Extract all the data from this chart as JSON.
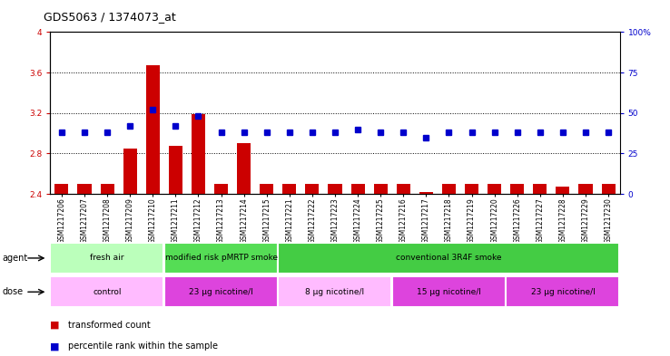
{
  "title": "GDS5063 / 1374073_at",
  "samples": [
    "GSM1217206",
    "GSM1217207",
    "GSM1217208",
    "GSM1217209",
    "GSM1217210",
    "GSM1217211",
    "GSM1217212",
    "GSM1217213",
    "GSM1217214",
    "GSM1217215",
    "GSM1217221",
    "GSM1217222",
    "GSM1217223",
    "GSM1217224",
    "GSM1217225",
    "GSM1217216",
    "GSM1217217",
    "GSM1217218",
    "GSM1217219",
    "GSM1217220",
    "GSM1217226",
    "GSM1217227",
    "GSM1217228",
    "GSM1217229",
    "GSM1217230"
  ],
  "transformed_count": [
    2.5,
    2.5,
    2.5,
    2.85,
    3.67,
    2.88,
    3.19,
    2.5,
    2.9,
    2.5,
    2.5,
    2.5,
    2.5,
    2.5,
    2.5,
    2.5,
    2.42,
    2.5,
    2.5,
    2.5,
    2.5,
    2.5,
    2.47,
    2.5,
    2.5
  ],
  "percentile_rank_pct": [
    38,
    38,
    38,
    42,
    52,
    42,
    48,
    38,
    38,
    38,
    38,
    38,
    38,
    40,
    38,
    38,
    35,
    38,
    38,
    38,
    38,
    38,
    38,
    38,
    38
  ],
  "ylim_left": [
    2.4,
    4.0
  ],
  "ylim_right": [
    0,
    100
  ],
  "yticks_left": [
    2.4,
    2.8,
    3.2,
    3.6,
    4.0
  ],
  "yticks_right": [
    0,
    25,
    50,
    75,
    100
  ],
  "ytick_labels_left": [
    "2.4",
    "2.8",
    "3.2",
    "3.6",
    "4"
  ],
  "ytick_labels_right": [
    "0",
    "25",
    "50",
    "75",
    "100%"
  ],
  "bar_color": "#cc0000",
  "dot_color": "#0000cc",
  "agent_groups": [
    {
      "label": "fresh air",
      "start": 0,
      "end": 4,
      "color": "#bbffbb"
    },
    {
      "label": "modified risk pMRTP smoke",
      "start": 5,
      "end": 9,
      "color": "#55dd55"
    },
    {
      "label": "conventional 3R4F smoke",
      "start": 10,
      "end": 24,
      "color": "#44cc44"
    }
  ],
  "dose_groups": [
    {
      "label": "control",
      "start": 0,
      "end": 4,
      "color": "#ffbbff"
    },
    {
      "label": "23 μg nicotine/l",
      "start": 5,
      "end": 9,
      "color": "#dd44dd"
    },
    {
      "label": "8 μg nicotine/l",
      "start": 10,
      "end": 14,
      "color": "#ffbbff"
    },
    {
      "label": "15 μg nicotine/l",
      "start": 15,
      "end": 19,
      "color": "#dd44dd"
    },
    {
      "label": "23 μg nicotine/l",
      "start": 20,
      "end": 24,
      "color": "#dd44dd"
    }
  ],
  "legend_items": [
    {
      "label": "transformed count",
      "color": "#cc0000"
    },
    {
      "label": "percentile rank within the sample",
      "color": "#0000cc"
    }
  ],
  "background_color": "#ffffff",
  "title_fontsize": 9,
  "tick_fontsize": 6.5,
  "sample_fontsize": 5.5
}
